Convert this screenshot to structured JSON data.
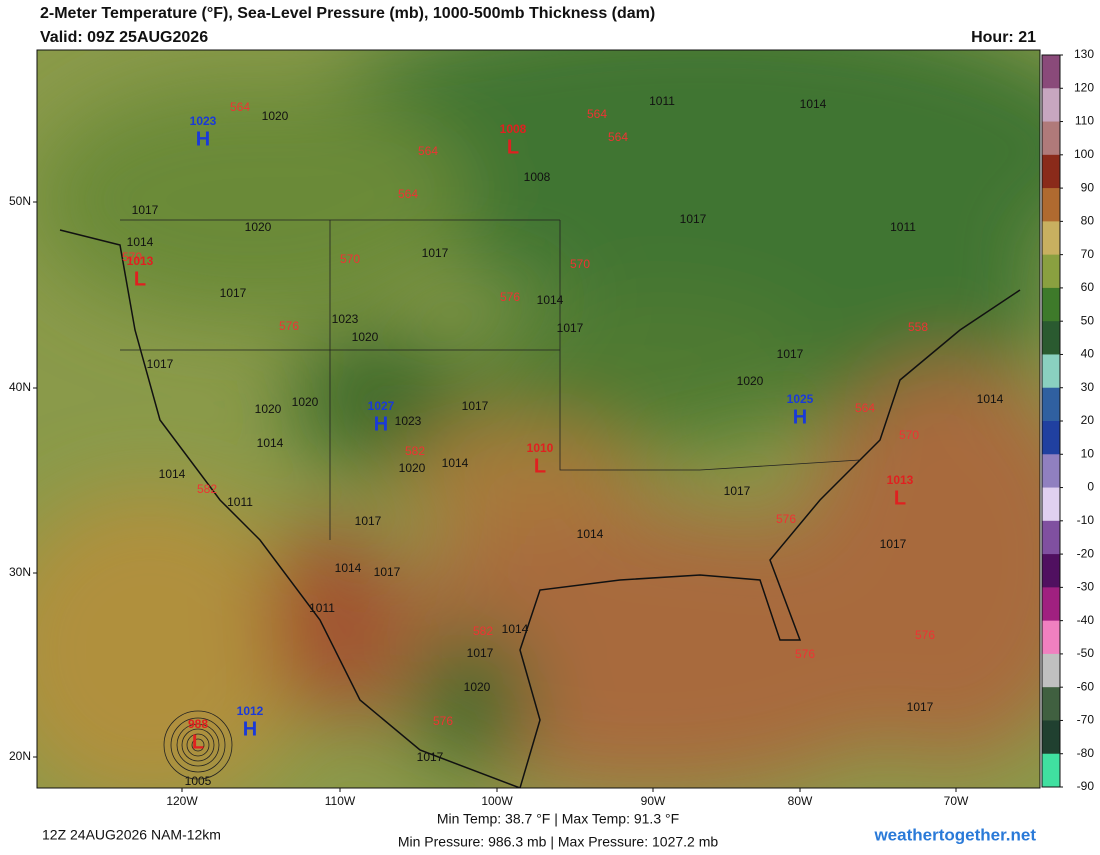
{
  "header": {
    "title": "2-Meter Temperature (°F), Sea-Level Pressure (mb), 1000-500mb Thickness (dam)",
    "valid": "Valid: 09Z 25AUG2026",
    "hour": "Hour: 21"
  },
  "colorbar": {
    "ticks": [
      130,
      120,
      110,
      100,
      90,
      80,
      70,
      60,
      50,
      40,
      30,
      20,
      10,
      0,
      -10,
      -20,
      -30,
      -40,
      -50,
      -60,
      -70,
      -80,
      -90
    ],
    "colors": [
      "#8a4a7a",
      "#c7a6c0",
      "#b07a7a",
      "#8a2a1a",
      "#b06a30",
      "#c8b060",
      "#8aa040",
      "#3e7a2a",
      "#2a5a30",
      "#8ad0c0",
      "#3060a0",
      "#2040a0",
      "#9080c0",
      "#e0d0f0",
      "#8050a0",
      "#501060",
      "#a02080",
      "#f080c0",
      "#c0c0c0",
      "#406040",
      "#204030",
      "#40e0a0"
    ]
  },
  "axes": {
    "lat_labels": [
      "50N",
      "40N",
      "30N",
      "20N"
    ],
    "lon_labels": [
      "120W",
      "110W",
      "100W",
      "90W",
      "80W",
      "70W"
    ]
  },
  "centers": [
    {
      "letter": "H",
      "value": "1023"
    },
    {
      "letter": "L",
      "value": "1008"
    },
    {
      "letter": "L",
      "value": "1013"
    },
    {
      "letter": "H",
      "value": "1027"
    },
    {
      "letter": "H",
      "value": "1025"
    },
    {
      "letter": "L",
      "value": "1010"
    },
    {
      "letter": "L",
      "value": "1013"
    },
    {
      "letter": "H",
      "value": "1012"
    },
    {
      "letter": "L",
      "value": "988"
    }
  ],
  "isobar_labels": [
    "1020",
    "1011",
    "1014",
    "1017",
    "1020",
    "1014",
    "1017",
    "1017",
    "1014",
    "1017",
    "1023",
    "1020",
    "1017",
    "1020",
    "1020",
    "1017",
    "1023",
    "1014",
    "1020",
    "1014",
    "1014",
    "1011",
    "1017",
    "1014",
    "1017",
    "1017",
    "1020",
    "1014",
    "1011",
    "1017",
    "1008",
    "1014",
    "1017",
    "1011",
    "1014",
    "1017",
    "1020",
    "1017",
    "1017",
    "1005",
    "1017"
  ],
  "thickness_labels": [
    "564",
    "564",
    "564",
    "564",
    "564",
    "570",
    "570",
    "570",
    "576",
    "576",
    "558",
    "564",
    "570",
    "582",
    "582",
    "576",
    "582",
    "576",
    "576",
    "576"
  ],
  "footer": {
    "run": "12Z 24AUG2026 NAM-12km",
    "temp_stats": "Min Temp:  38.7 °F | Max Temp:  91.3 °F",
    "pressure_stats": "Min Pressure: 986.3 mb | Max Pressure: 1027.2 mb",
    "site": "weathertogether.net"
  }
}
